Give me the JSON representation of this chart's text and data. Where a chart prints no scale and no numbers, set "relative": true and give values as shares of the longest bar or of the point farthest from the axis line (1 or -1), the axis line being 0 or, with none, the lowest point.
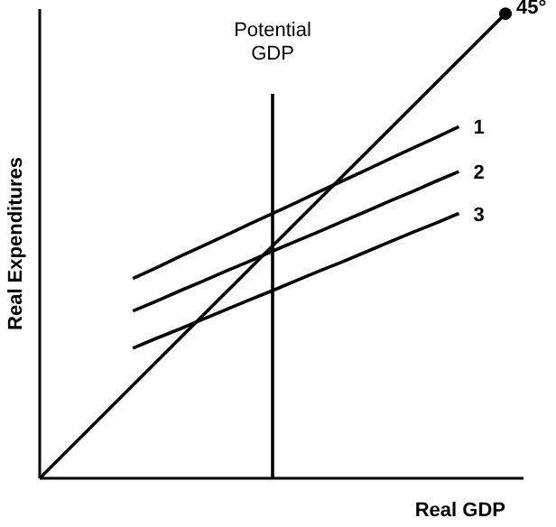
{
  "chart_data": {
    "type": "line",
    "relative": true,
    "xlabel": "Real GDP",
    "ylabel": "Real Expenditures",
    "marker": "none",
    "line_style": "solid",
    "categories": [
      null,
      null,
      null,
      null,
      null,
      null,
      null,
      null,
      null,
      null,
      null,
      null,
      null,
      null,
      null,
      null,
      null,
      null,
      null,
      null,
      null
    ],
    "series": [
      {
        "name": "45°",
        "color": "#000000",
        "values": [
          0,
          0.05,
          0.1,
          0.15,
          0.2,
          0.25,
          0.3,
          0.35,
          0.4,
          0.45,
          0.5,
          0.55,
          0.6,
          0.65,
          0.7,
          0.75,
          0.8,
          0.85,
          0.9,
          0.95,
          1
        ]
      },
      {
        "name": "1",
        "color": "#000000",
        "values": [
          null,
          null,
          null,
          null,
          0.43,
          0.453,
          0.477,
          0.5,
          0.523,
          0.547,
          0.57,
          0.593,
          0.617,
          0.64,
          0.663,
          0.687,
          0.71,
          0.733,
          0.757,
          null,
          null
        ]
      },
      {
        "name": "2",
        "color": "#000000",
        "values": [
          null,
          null,
          null,
          null,
          0.36,
          0.381,
          0.403,
          0.424,
          0.446,
          0.467,
          0.489,
          0.51,
          0.531,
          0.553,
          0.574,
          0.596,
          0.617,
          0.639,
          0.66,
          null,
          null
        ]
      },
      {
        "name": "3",
        "color": "#000000",
        "values": [
          null,
          null,
          null,
          null,
          0.28,
          0.301,
          0.321,
          0.342,
          0.363,
          0.384,
          0.404,
          0.425,
          0.446,
          0.466,
          0.487,
          0.508,
          0.529,
          0.549,
          0.57,
          null,
          null
        ]
      }
    ],
    "annotations": [
      "Potential GDP"
    ]
  }
}
